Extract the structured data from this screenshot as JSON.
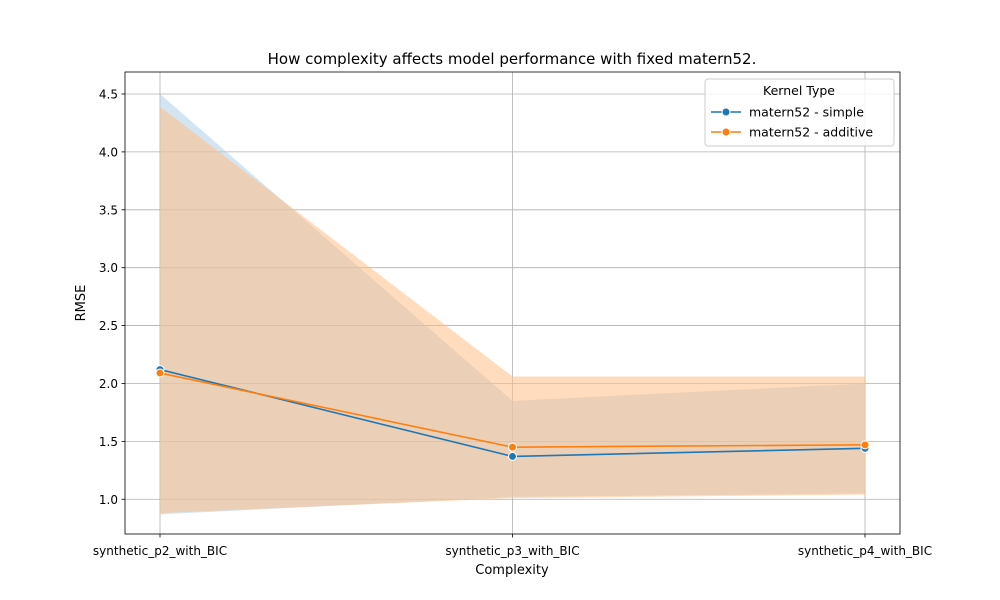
{
  "chart_data": {
    "type": "line",
    "title": "How complexity affects model performance with fixed matern52.",
    "xlabel": "Complexity",
    "ylabel": "RMSE",
    "categories": [
      "synthetic_p2_with_BIC",
      "synthetic_p3_with_BIC",
      "synthetic_p4_with_BIC"
    ],
    "ylim": [
      0.7,
      4.69
    ],
    "yticks": [
      1.0,
      1.5,
      2.0,
      2.5,
      3.0,
      3.5,
      4.0,
      4.5
    ],
    "ytick_labels": [
      "1.0",
      "1.5",
      "2.0",
      "2.5",
      "3.0",
      "3.5",
      "4.0",
      "4.5"
    ],
    "grid": true,
    "legend": {
      "title": "Kernel Type",
      "placement": "top-right"
    },
    "series": [
      {
        "name": "matern52 - simple",
        "color": "#1f77b4",
        "fill_color": "#aecfe8",
        "values": [
          2.12,
          1.37,
          1.44
        ],
        "ci_low": [
          0.87,
          1.02,
          1.05
        ],
        "ci_high": [
          4.5,
          1.85,
          2.0
        ]
      },
      {
        "name": "matern52 - additive",
        "color": "#ff7f0e",
        "fill_color": "#ffbf86",
        "values": [
          2.09,
          1.45,
          1.47
        ],
        "ci_low": [
          0.88,
          1.01,
          1.04
        ],
        "ci_high": [
          4.39,
          2.06,
          2.06
        ]
      }
    ]
  }
}
